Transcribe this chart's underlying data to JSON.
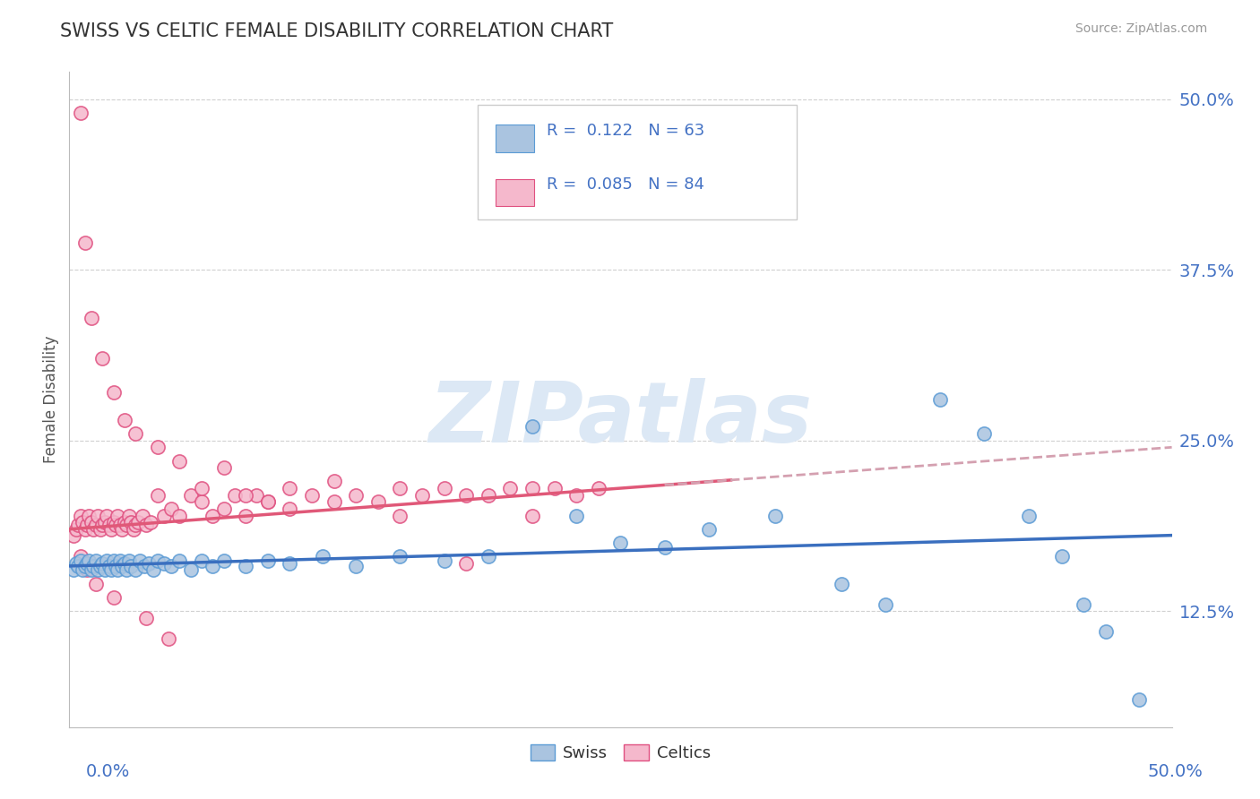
{
  "title": "SWISS VS CELTIC FEMALE DISABILITY CORRELATION CHART",
  "source": "Source: ZipAtlas.com",
  "ylabel": "Female Disability",
  "xlim": [
    0.0,
    0.5
  ],
  "ylim": [
    0.04,
    0.52
  ],
  "yticks": [
    0.125,
    0.25,
    0.375,
    0.5
  ],
  "ytick_labels": [
    "12.5%",
    "25.0%",
    "37.5%",
    "50.0%"
  ],
  "swiss_color": "#aac4e0",
  "swiss_edge_color": "#5b9bd5",
  "celtics_color": "#f5b8cc",
  "celtics_edge_color": "#e05080",
  "trend_swiss_color": "#3a6fbf",
  "trend_celtics_solid_color": "#e05878",
  "trend_celtics_dash_color": "#d4a0b0",
  "background_color": "#ffffff",
  "grid_color": "#d0d0d0",
  "tick_color": "#4472c4",
  "watermark_color": "#dce8f5",
  "swiss_intercept": 0.158,
  "swiss_slope": 0.045,
  "celtics_intercept": 0.185,
  "celtics_slope": 0.12,
  "swiss_x": [
    0.002,
    0.003,
    0.004,
    0.005,
    0.006,
    0.007,
    0.008,
    0.009,
    0.01,
    0.011,
    0.012,
    0.013,
    0.014,
    0.015,
    0.016,
    0.017,
    0.018,
    0.019,
    0.02,
    0.021,
    0.022,
    0.023,
    0.024,
    0.025,
    0.026,
    0.027,
    0.028,
    0.03,
    0.032,
    0.034,
    0.036,
    0.038,
    0.04,
    0.043,
    0.046,
    0.05,
    0.055,
    0.06,
    0.065,
    0.07,
    0.08,
    0.09,
    0.1,
    0.115,
    0.13,
    0.15,
    0.17,
    0.19,
    0.21,
    0.23,
    0.25,
    0.27,
    0.29,
    0.32,
    0.35,
    0.37,
    0.395,
    0.415,
    0.435,
    0.45,
    0.46,
    0.47,
    0.485
  ],
  "swiss_y": [
    0.155,
    0.16,
    0.158,
    0.162,
    0.155,
    0.158,
    0.16,
    0.162,
    0.155,
    0.158,
    0.162,
    0.155,
    0.158,
    0.16,
    0.155,
    0.162,
    0.158,
    0.155,
    0.162,
    0.158,
    0.155,
    0.162,
    0.158,
    0.16,
    0.155,
    0.162,
    0.158,
    0.155,
    0.162,
    0.158,
    0.16,
    0.155,
    0.162,
    0.16,
    0.158,
    0.162,
    0.155,
    0.162,
    0.158,
    0.162,
    0.158,
    0.162,
    0.16,
    0.165,
    0.158,
    0.165,
    0.162,
    0.165,
    0.26,
    0.195,
    0.175,
    0.172,
    0.185,
    0.195,
    0.145,
    0.13,
    0.28,
    0.255,
    0.195,
    0.165,
    0.13,
    0.11,
    0.06
  ],
  "celtics_x": [
    0.002,
    0.003,
    0.004,
    0.005,
    0.006,
    0.007,
    0.008,
    0.009,
    0.01,
    0.011,
    0.012,
    0.013,
    0.014,
    0.015,
    0.016,
    0.017,
    0.018,
    0.019,
    0.02,
    0.021,
    0.022,
    0.023,
    0.024,
    0.025,
    0.026,
    0.027,
    0.028,
    0.029,
    0.03,
    0.031,
    0.033,
    0.035,
    0.037,
    0.04,
    0.043,
    0.046,
    0.05,
    0.055,
    0.06,
    0.065,
    0.07,
    0.075,
    0.08,
    0.085,
    0.09,
    0.1,
    0.11,
    0.12,
    0.13,
    0.14,
    0.15,
    0.16,
    0.17,
    0.18,
    0.19,
    0.2,
    0.21,
    0.22,
    0.23,
    0.24,
    0.005,
    0.007,
    0.01,
    0.015,
    0.02,
    0.025,
    0.03,
    0.04,
    0.05,
    0.06,
    0.07,
    0.08,
    0.09,
    0.1,
    0.12,
    0.15,
    0.18,
    0.21,
    0.005,
    0.008,
    0.012,
    0.02,
    0.035,
    0.045
  ],
  "celtics_y": [
    0.18,
    0.185,
    0.188,
    0.195,
    0.19,
    0.185,
    0.188,
    0.195,
    0.19,
    0.185,
    0.188,
    0.195,
    0.185,
    0.188,
    0.19,
    0.195,
    0.188,
    0.185,
    0.19,
    0.188,
    0.195,
    0.188,
    0.185,
    0.19,
    0.188,
    0.195,
    0.19,
    0.185,
    0.188,
    0.19,
    0.195,
    0.188,
    0.19,
    0.21,
    0.195,
    0.2,
    0.195,
    0.21,
    0.205,
    0.195,
    0.2,
    0.21,
    0.195,
    0.21,
    0.205,
    0.2,
    0.21,
    0.205,
    0.21,
    0.205,
    0.215,
    0.21,
    0.215,
    0.16,
    0.21,
    0.215,
    0.215,
    0.215,
    0.21,
    0.215,
    0.49,
    0.395,
    0.34,
    0.31,
    0.285,
    0.265,
    0.255,
    0.245,
    0.235,
    0.215,
    0.23,
    0.21,
    0.205,
    0.215,
    0.22,
    0.195,
    0.21,
    0.195,
    0.165,
    0.155,
    0.145,
    0.135,
    0.12,
    0.105
  ]
}
